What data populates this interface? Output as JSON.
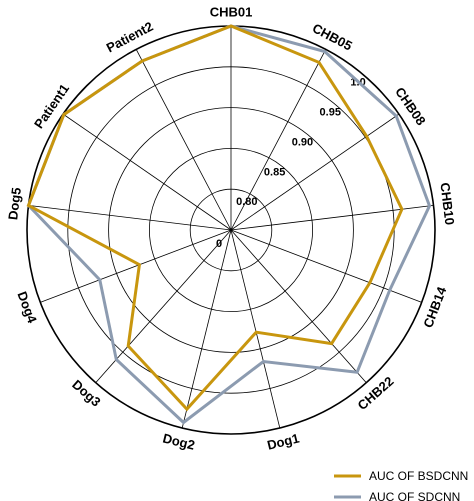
{
  "chart_data": {
    "type": "radar",
    "categories": [
      "CHB01",
      "CHB05",
      "CHB08",
      "CHB10",
      "CHB14",
      "CHB22",
      "Dog1",
      "Dog2",
      "Dog3",
      "Dog4",
      "Dog5",
      "Patient1",
      "Patient2"
    ],
    "rlim": [
      0.75,
      1.0
    ],
    "ring_ticks": [
      0,
      0.8,
      0.85,
      0.9,
      0.95,
      1.0
    ],
    "ring_tick_labels": [
      "0",
      "0.80",
      "0.85",
      "0.90",
      "0.95",
      "1.0"
    ],
    "grid": true,
    "legend_position": "bottom-right",
    "series": [
      {
        "name": "AUC OF BSDCNN",
        "color": "#C8960E",
        "values": [
          1.0,
          0.982,
          0.952,
          0.961,
          0.932,
          0.936,
          0.879,
          0.976,
          0.94,
          0.87,
          1.0,
          0.999,
          0.984
        ]
      },
      {
        "name": "AUC OF SDCNN",
        "color": "#8C9BB0",
        "values": [
          1.0,
          0.997,
          0.996,
          0.995,
          0.958,
          0.983,
          0.916,
          0.993,
          0.962,
          0.922,
          1.0,
          0.999,
          0.984
        ]
      }
    ]
  }
}
